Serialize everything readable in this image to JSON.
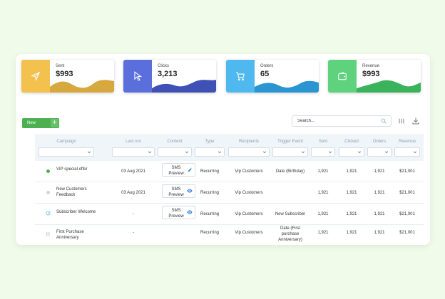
{
  "stats": [
    {
      "label": "Sent",
      "value": "$993",
      "icon": "paper-plane-icon",
      "color": "#f2c14e",
      "wave": "#d6a83e"
    },
    {
      "label": "Clicks",
      "value": "3,213",
      "icon": "cursor-icon",
      "color": "#5a6fdc",
      "wave": "#3f51b5"
    },
    {
      "label": "Orders",
      "value": "65",
      "icon": "cart-icon",
      "color": "#4fb8ee",
      "wave": "#2a95d1"
    },
    {
      "label": "Revenue",
      "value": "$993",
      "icon": "wallet-icon",
      "color": "#5fd27e",
      "wave": "#3bb35c"
    }
  ],
  "toolbar": {
    "new_label": "New",
    "search_placeholder": "Search..."
  },
  "columns": [
    "Campaign",
    "Last run",
    "Content",
    "Type",
    "Recipients",
    "Trigger Event",
    "Sent",
    "Clicked",
    "Orders",
    "Revenue"
  ],
  "rows": [
    {
      "status": "active",
      "status_color": "#4caf50",
      "campaign": [
        "VIP special offer"
      ],
      "last_run": "03 Aug 2021",
      "content": "SMS Preview",
      "content_icon": "pencil-icon",
      "type": "Recurring",
      "recipients": "Vip Customers",
      "trigger": [
        "Date (Birthday)"
      ],
      "sent": "1,921",
      "clicked": "1,921",
      "orders": "1,921",
      "revenue": "$21,001"
    },
    {
      "status": "inactive",
      "status_color": "#cfd6dd",
      "campaign": [
        "New Customers",
        "Feedback"
      ],
      "last_run": "03 Aug 2021",
      "content": "SMS Preview",
      "content_icon": "eye-icon",
      "type": "Recurring",
      "recipients": "Vip Customers",
      "trigger": [],
      "sent": "1,921",
      "clicked": "1,921",
      "orders": "1,921",
      "revenue": "$21,001"
    },
    {
      "status": "scheduled",
      "status_color": "#4fb8ee",
      "campaign": [
        "Subscriber Welcome"
      ],
      "last_run": "-",
      "content": "SMS Preview",
      "content_icon": "eye-icon",
      "type": "Recurring",
      "recipients": "Vip Customers",
      "trigger": [
        "New Subscriber"
      ],
      "sent": "1,921",
      "clicked": "1,921",
      "orders": "1,921",
      "revenue": "$21,001"
    },
    {
      "status": "paused",
      "status_color": "#cfd6dd",
      "campaign": [
        "First Purchase",
        "Anniversary"
      ],
      "last_run": "-",
      "content": "",
      "content_icon": "",
      "type": "Recurring",
      "recipients": "Vip Customers",
      "trigger": [
        "Date (First",
        "purchase",
        "Anniversary)"
      ],
      "sent": "1,921",
      "clicked": "1,921",
      "orders": "1,921",
      "revenue": "$21,001"
    }
  ]
}
